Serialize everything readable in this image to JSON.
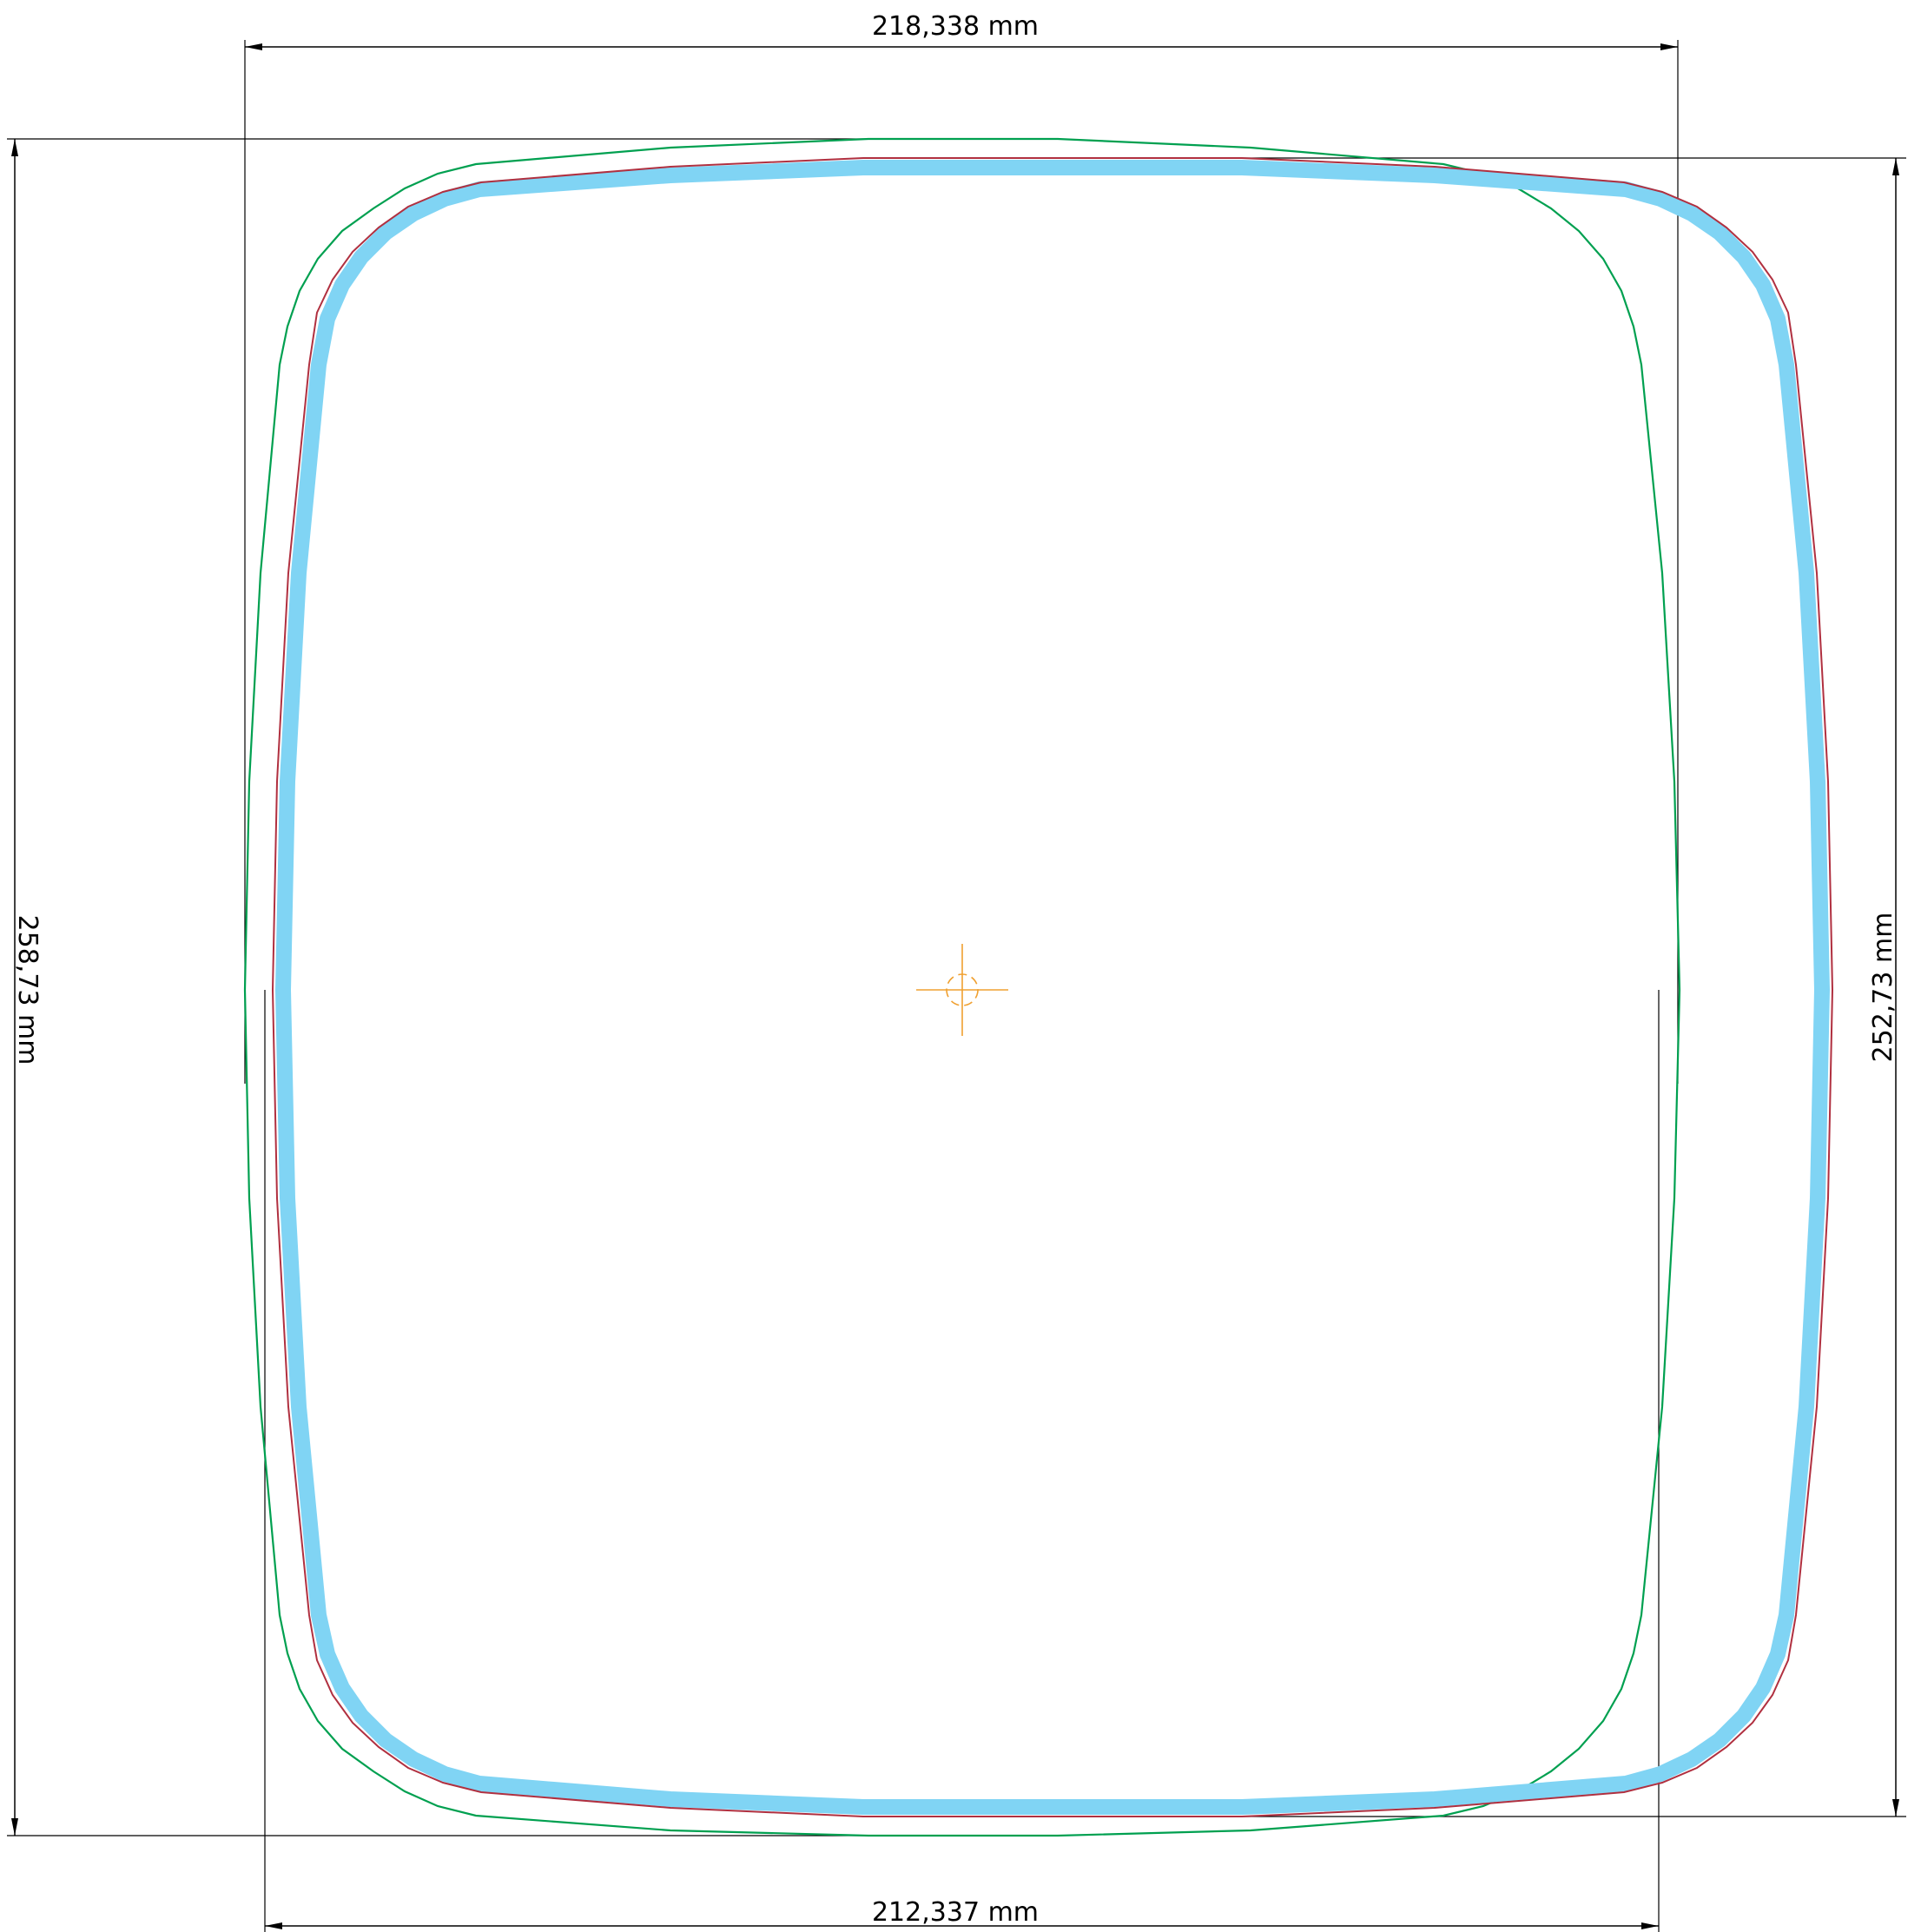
{
  "dimensions": {
    "top_width": "218,338 mm",
    "bottom_width": "212,337  mm",
    "left_height": "258,73 mm",
    "right_height": "252,73 mm"
  },
  "colors": {
    "outer_profile": "#00a050",
    "inner_profile": "#b03040",
    "band": "#80d4f4",
    "center_mark": "#f0a030",
    "dimension_lines": "#000000"
  },
  "center_mark": {
    "icon": "crosshair-icon"
  }
}
